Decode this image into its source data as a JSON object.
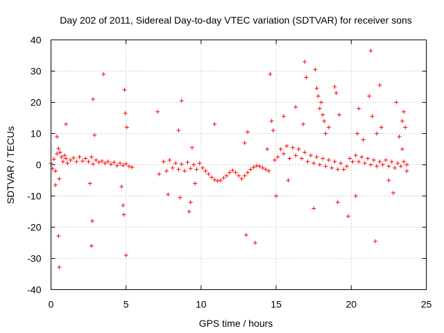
{
  "chart_data": {
    "type": "scatter",
    "title": "Day 202 of 2011, Sidereal Day-to-day VTEC variation (SDTVAR) for receiver sons",
    "xlabel": "GPS time / hours",
    "ylabel": "SDTVAR / TECUs",
    "xlim": [
      0,
      25
    ],
    "ylim": [
      -40,
      40
    ],
    "xticks": [
      0,
      5,
      10,
      15,
      20,
      25
    ],
    "yticks": [
      -40,
      -30,
      -20,
      -10,
      0,
      10,
      20,
      30,
      40
    ],
    "grid": true,
    "marker": "+",
    "color": "#ff0000",
    "series": [
      {
        "name": "SDTVAR",
        "points": [
          [
            0.0,
            0.5
          ],
          [
            0.1,
            -1.2
          ],
          [
            0.2,
            1.8
          ],
          [
            0.3,
            -2.0
          ],
          [
            0.4,
            3.5
          ],
          [
            0.5,
            5.2
          ],
          [
            0.55,
            -4.5
          ],
          [
            0.6,
            4.0
          ],
          [
            0.7,
            2.5
          ],
          [
            0.8,
            1.0
          ],
          [
            0.9,
            3.0
          ],
          [
            1.0,
            2.0
          ],
          [
            1.1,
            0.5
          ],
          [
            1.3,
            1.5
          ],
          [
            1.5,
            2.2
          ],
          [
            1.7,
            1.0
          ],
          [
            1.9,
            2.5
          ],
          [
            2.1,
            1.2
          ],
          [
            2.3,
            2.0
          ],
          [
            2.5,
            1.0
          ],
          [
            2.7,
            2.5
          ],
          [
            2.8,
            0.2
          ],
          [
            3.0,
            1.5
          ],
          [
            3.2,
            0.8
          ],
          [
            3.4,
            1.2
          ],
          [
            3.6,
            0.5
          ],
          [
            3.8,
            1.0
          ],
          [
            4.0,
            0.2
          ],
          [
            4.2,
            0.8
          ],
          [
            4.4,
            -0.3
          ],
          [
            4.6,
            0.5
          ],
          [
            4.8,
            -0.2
          ],
          [
            5.0,
            0.3
          ],
          [
            5.2,
            -0.5
          ],
          [
            5.4,
            -0.8
          ],
          [
            0.5,
            -22.8
          ],
          [
            0.55,
            -32.8
          ],
          [
            1.0,
            13.0
          ],
          [
            2.8,
            21.0
          ],
          [
            2.75,
            -18.0
          ],
          [
            2.7,
            -26.0
          ],
          [
            3.5,
            29.0
          ],
          [
            2.9,
            9.5
          ],
          [
            2.6,
            -6.0
          ],
          [
            4.9,
            24.0
          ],
          [
            5.0,
            -29.0
          ],
          [
            4.95,
            16.5
          ],
          [
            4.8,
            -13.0
          ],
          [
            4.85,
            -16.0
          ],
          [
            0.4,
            9.0
          ],
          [
            0.3,
            -6.5
          ],
          [
            4.7,
            -7.0
          ],
          [
            5.05,
            12.0
          ],
          [
            7.1,
            17.0
          ],
          [
            8.7,
            20.5
          ],
          [
            7.2,
            -3.0
          ],
          [
            7.5,
            1.0
          ],
          [
            7.7,
            -2.0
          ],
          [
            7.9,
            1.5
          ],
          [
            8.1,
            -1.0
          ],
          [
            8.3,
            0.5
          ],
          [
            8.5,
            -1.5
          ],
          [
            8.7,
            0.2
          ],
          [
            8.9,
            -2.0
          ],
          [
            9.1,
            0.8
          ],
          [
            9.3,
            -1.2
          ],
          [
            9.5,
            0.0
          ],
          [
            9.7,
            -1.5
          ],
          [
            9.9,
            0.5
          ],
          [
            10.1,
            -1.0
          ],
          [
            10.3,
            -2.0
          ],
          [
            10.5,
            -3.0
          ],
          [
            10.7,
            -4.0
          ],
          [
            10.9,
            -4.8
          ],
          [
            11.1,
            -5.2
          ],
          [
            11.3,
            -5.0
          ],
          [
            11.5,
            -4.2
          ],
          [
            11.7,
            -3.5
          ],
          [
            11.9,
            -2.5
          ],
          [
            12.1,
            -1.8
          ],
          [
            12.3,
            -2.5
          ],
          [
            12.5,
            -3.5
          ],
          [
            12.7,
            -4.5
          ],
          [
            12.9,
            -3.5
          ],
          [
            13.1,
            -2.5
          ],
          [
            13.3,
            -1.5
          ],
          [
            13.5,
            -0.8
          ],
          [
            13.7,
            -0.3
          ],
          [
            13.9,
            -0.5
          ],
          [
            14.1,
            -1.0
          ],
          [
            14.3,
            -1.5
          ],
          [
            14.5,
            -2.0
          ],
          [
            7.8,
            -9.5
          ],
          [
            8.6,
            -10.5
          ],
          [
            9.2,
            -15.0
          ],
          [
            9.3,
            -12.0
          ],
          [
            9.4,
            5.5
          ],
          [
            8.5,
            11.0
          ],
          [
            10.9,
            13.0
          ],
          [
            9.6,
            -6.0
          ],
          [
            12.9,
            7.0
          ],
          [
            13.0,
            -22.5
          ],
          [
            13.6,
            -25.0
          ],
          [
            13.1,
            10.5
          ],
          [
            14.6,
            29.0
          ],
          [
            14.7,
            14.0
          ],
          [
            14.8,
            11.0
          ],
          [
            14.4,
            5.0
          ],
          [
            14.9,
            1.5
          ],
          [
            15.1,
            2.5
          ],
          [
            15.3,
            5.0
          ],
          [
            15.5,
            3.5
          ],
          [
            15.7,
            6.0
          ],
          [
            15.9,
            2.0
          ],
          [
            16.1,
            5.5
          ],
          [
            16.3,
            3.0
          ],
          [
            16.5,
            5.0
          ],
          [
            16.7,
            2.0
          ],
          [
            16.9,
            4.0
          ],
          [
            17.1,
            1.0
          ],
          [
            17.3,
            3.0
          ],
          [
            17.5,
            0.5
          ],
          [
            17.7,
            2.5
          ],
          [
            17.9,
            0.0
          ],
          [
            18.1,
            2.0
          ],
          [
            18.3,
            -0.5
          ],
          [
            18.5,
            1.5
          ],
          [
            18.7,
            -1.0
          ],
          [
            18.9,
            1.0
          ],
          [
            19.1,
            -1.5
          ],
          [
            19.3,
            0.5
          ],
          [
            19.5,
            -1.5
          ],
          [
            19.7,
            -0.5
          ],
          [
            19.9,
            2.0
          ],
          [
            20.1,
            1.0
          ],
          [
            20.3,
            3.0
          ],
          [
            20.5,
            1.0
          ],
          [
            20.7,
            2.5
          ],
          [
            20.9,
            0.5
          ],
          [
            21.1,
            2.0
          ],
          [
            21.3,
            0.0
          ],
          [
            21.5,
            1.5
          ],
          [
            21.7,
            -0.5
          ],
          [
            21.9,
            1.0
          ],
          [
            22.1,
            0.0
          ],
          [
            22.3,
            1.5
          ],
          [
            22.5,
            -0.5
          ],
          [
            22.7,
            1.0
          ],
          [
            22.9,
            -1.0
          ],
          [
            23.1,
            0.5
          ],
          [
            23.3,
            -0.5
          ],
          [
            23.5,
            1.0
          ],
          [
            23.7,
            0.0
          ],
          [
            15.5,
            15.5
          ],
          [
            15.0,
            -10.0
          ],
          [
            15.8,
            -5.0
          ],
          [
            16.3,
            18.5
          ],
          [
            16.9,
            33.0
          ],
          [
            17.0,
            28.0
          ],
          [
            16.8,
            13.0
          ],
          [
            17.6,
            30.5
          ],
          [
            17.7,
            24.5
          ],
          [
            17.8,
            22.0
          ],
          [
            17.9,
            18.0
          ],
          [
            18.0,
            20.0
          ],
          [
            18.1,
            16.0
          ],
          [
            18.2,
            14.0
          ],
          [
            18.3,
            10.0
          ],
          [
            18.5,
            12.0
          ],
          [
            17.5,
            -14.0
          ],
          [
            18.9,
            25.0
          ],
          [
            19.0,
            23.0
          ],
          [
            19.2,
            16.0
          ],
          [
            19.1,
            -12.0
          ],
          [
            19.8,
            -16.5
          ],
          [
            20.3,
            -10.0
          ],
          [
            20.5,
            18.0
          ],
          [
            20.4,
            10.0
          ],
          [
            20.8,
            8.0
          ],
          [
            21.2,
            22.0
          ],
          [
            21.3,
            36.5
          ],
          [
            21.4,
            15.5
          ],
          [
            21.6,
            -24.5
          ],
          [
            21.9,
            25.5
          ],
          [
            21.7,
            10.0
          ],
          [
            22.0,
            12.0
          ],
          [
            22.5,
            -5.0
          ],
          [
            22.8,
            -9.0
          ],
          [
            23.0,
            20.0
          ],
          [
            23.2,
            9.0
          ],
          [
            23.4,
            14.0
          ],
          [
            23.5,
            17.0
          ],
          [
            23.6,
            12.0
          ],
          [
            23.4,
            5.0
          ],
          [
            23.7,
            -2.0
          ]
        ]
      }
    ]
  }
}
